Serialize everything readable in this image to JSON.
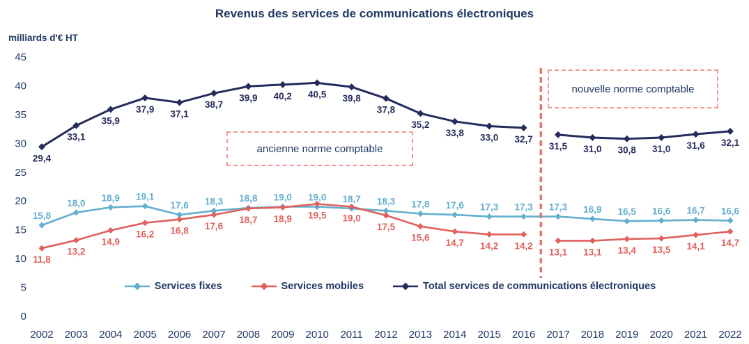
{
  "title": "Revenus des services de communications électroniques",
  "unit_label": "milliards d'€ HT",
  "annotations": {
    "old_norm": "ancienne norme comptable",
    "new_norm": "nouvelle norme comptable"
  },
  "colors": {
    "navy": "#1F3864",
    "fixes": "#63AECE",
    "mobiles": "#E0605C",
    "total": "#252B5C",
    "annotation_border": "#F49595",
    "divider": "#E8736F"
  },
  "chart_data": {
    "type": "line",
    "x": [
      2002,
      2003,
      2004,
      2005,
      2006,
      2007,
      2008,
      2009,
      2010,
      2011,
      2012,
      2013,
      2014,
      2015,
      2016,
      2017,
      2018,
      2019,
      2020,
      2021,
      2022
    ],
    "ylabel": "milliards d'€ HT",
    "ylim": [
      0,
      45
    ],
    "ytick_step": 5,
    "grid": false,
    "legend_position": "bottom-inside",
    "norm_break_between": [
      2016,
      2017
    ],
    "series": [
      {
        "name": "Services fixes",
        "color_key": "fixes",
        "label_position": "above",
        "break_after": null,
        "values": [
          15.8,
          18.0,
          18.9,
          19.1,
          17.6,
          18.3,
          18.8,
          19.0,
          19.0,
          18.7,
          18.3,
          17.8,
          17.6,
          17.3,
          17.3,
          17.3,
          16.9,
          16.5,
          16.6,
          16.7,
          16.6
        ]
      },
      {
        "name": "Services mobiles",
        "color_key": "mobiles",
        "label_position": "below",
        "break_after": 2016,
        "values": [
          11.8,
          13.2,
          14.9,
          16.2,
          16.8,
          17.6,
          18.7,
          18.9,
          19.5,
          19.0,
          17.5,
          15.6,
          14.7,
          14.2,
          14.2,
          13.1,
          13.1,
          13.4,
          13.5,
          14.1,
          14.7
        ]
      },
      {
        "name": "Total services de communications électroniques",
        "color_key": "total",
        "label_position": "below",
        "break_after": 2016,
        "values": [
          29.4,
          33.1,
          35.9,
          37.9,
          37.1,
          38.7,
          39.9,
          40.2,
          40.5,
          39.8,
          37.8,
          35.2,
          33.8,
          33.0,
          32.7,
          31.5,
          31.0,
          30.8,
          31.0,
          31.6,
          32.1
        ]
      }
    ]
  }
}
